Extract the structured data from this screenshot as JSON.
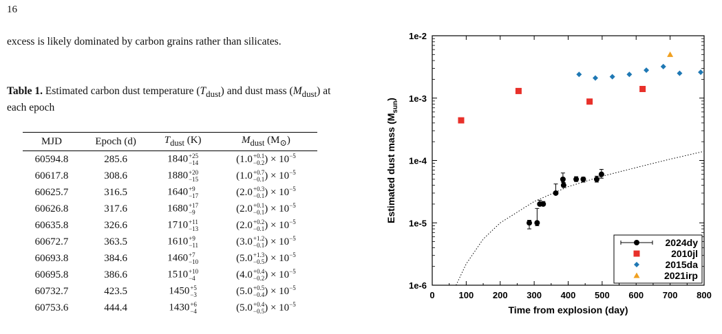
{
  "page_number": "16",
  "paragraph": "excess is likely dominated by carbon grains rather than silicates.",
  "caption": {
    "label": "Table 1.",
    "text_a": "Estimated carbon dust temperature (",
    "tdust_sym": "T",
    "tdust_sub": "dust",
    "text_b": ") and dust mass (",
    "mdust_sym": "M",
    "mdust_sub": "dust",
    "text_c": ") at each epoch"
  },
  "table": {
    "headers": {
      "mjd": "MJD",
      "epoch": "Epoch (d)",
      "tdust": "T",
      "tdust_sub": "dust",
      "tdust_unit": "(K)",
      "mdust": "M",
      "mdust_sub": "dust",
      "mdust_unit_open": "(M",
      "mdust_unit_sub": "⊙",
      "mdust_unit_close": ")"
    },
    "times": "× 10",
    "exponent": "−5",
    "rows": [
      {
        "mjd": "60594.8",
        "epoch": "285.6",
        "t": "1840",
        "t_up": "+25",
        "t_dn": "−14",
        "m": "(1.0",
        "m_up": "+0.1",
        "m_dn": "−0.2"
      },
      {
        "mjd": "60617.8",
        "epoch": "308.6",
        "t": "1880",
        "t_up": "+20",
        "t_dn": "−15",
        "m": "(1.0",
        "m_up": "+0.7",
        "m_dn": "−0.1"
      },
      {
        "mjd": "60625.7",
        "epoch": "316.5",
        "t": "1640",
        "t_up": "+9",
        "t_dn": "−17",
        "m": "(2.0",
        "m_up": "+0.3",
        "m_dn": "−0.1"
      },
      {
        "mjd": "60626.8",
        "epoch": "317.6",
        "t": "1680",
        "t_up": "+17",
        "t_dn": "−9",
        "m": "(2.0",
        "m_up": "+0.1",
        "m_dn": "−0.1"
      },
      {
        "mjd": "60635.8",
        "epoch": "326.6",
        "t": "1710",
        "t_up": "+11",
        "t_dn": "−13",
        "m": "(2.0",
        "m_up": "+0.2",
        "m_dn": "−0.1"
      },
      {
        "mjd": "60672.7",
        "epoch": "363.5",
        "t": "1610",
        "t_up": "+9",
        "t_dn": "−11",
        "m": "(3.0",
        "m_up": "+1.2",
        "m_dn": "−0.1"
      },
      {
        "mjd": "60693.8",
        "epoch": "384.6",
        "t": "1460",
        "t_up": "+7",
        "t_dn": "−10",
        "m": "(5.0",
        "m_up": "+1.3",
        "m_dn": "−0.5"
      },
      {
        "mjd": "60695.8",
        "epoch": "386.6",
        "t": "1510",
        "t_up": "+10",
        "t_dn": "−4",
        "m": "(4.0",
        "m_up": "+0.4",
        "m_dn": "−0.2"
      },
      {
        "mjd": "60732.7",
        "epoch": "423.5",
        "t": "1450",
        "t_up": "+5",
        "t_dn": "−3",
        "m": "(5.0",
        "m_up": "+0.5",
        "m_dn": "−0.4"
      },
      {
        "mjd": "60753.6",
        "epoch": "444.4",
        "t": "1430",
        "t_up": "+6",
        "t_dn": "−4",
        "m": "(5.0",
        "m_up": "+0.4",
        "m_dn": "−0.5"
      }
    ]
  },
  "chart_data": {
    "type": "scatter",
    "title": "",
    "xlabel": "Time from explosion (day)",
    "ylabel": "Estimated dust mass (M",
    "ylabel_sub": "sun",
    "ylabel_close": ")",
    "xlim": [
      0,
      800
    ],
    "ylim": [
      1e-06,
      0.01
    ],
    "yscale": "log",
    "xticks": [
      "0",
      "100",
      "200",
      "300",
      "400",
      "500",
      "600",
      "700",
      "800"
    ],
    "yticks": [
      "1e-6",
      "1e-5",
      "1e-4",
      "1e-3",
      "1e-2"
    ],
    "legend_position": "bottom-right",
    "series": [
      {
        "name": "2024dy",
        "marker": "circle",
        "color": "#000000",
        "points": [
          {
            "x": 285.6,
            "y": 1e-05,
            "ylo": 8e-06,
            "yhi": 1.1e-05
          },
          {
            "x": 308.6,
            "y": 1e-05,
            "ylo": 9e-06,
            "yhi": 1.7e-05
          },
          {
            "x": 316.5,
            "y": 2e-05,
            "ylo": 1.9e-05,
            "yhi": 2.3e-05
          },
          {
            "x": 326.6,
            "y": 2e-05,
            "ylo": 1.9e-05,
            "yhi": 2.2e-05
          },
          {
            "x": 363.5,
            "y": 3e-05,
            "ylo": 2.9e-05,
            "yhi": 4.2e-05
          },
          {
            "x": 384.6,
            "y": 5e-05,
            "ylo": 4.5e-05,
            "yhi": 6.3e-05
          },
          {
            "x": 386.6,
            "y": 4e-05,
            "ylo": 3.8e-05,
            "yhi": 4.4e-05
          },
          {
            "x": 423.5,
            "y": 5e-05,
            "ylo": 4.6e-05,
            "yhi": 5.5e-05
          },
          {
            "x": 444.4,
            "y": 5e-05,
            "ylo": 4.5e-05,
            "yhi": 5.4e-05
          },
          {
            "x": 484,
            "y": 5e-05,
            "ylo": 4.5e-05,
            "yhi": 5.6e-05
          },
          {
            "x": 498,
            "y": 6e-05,
            "ylo": 5.2e-05,
            "yhi": 7.2e-05
          }
        ]
      },
      {
        "name": "2010jl",
        "marker": "square",
        "color": "#e8302a",
        "points": [
          {
            "x": 85,
            "y": 0.00044
          },
          {
            "x": 254,
            "y": 0.0013
          },
          {
            "x": 463,
            "y": 0.00088
          },
          {
            "x": 619,
            "y": 0.0014
          }
        ]
      },
      {
        "name": "2015da",
        "marker": "diamond",
        "color": "#1f78b4",
        "points": [
          {
            "x": 432,
            "y": 0.0024
          },
          {
            "x": 480,
            "y": 0.0021
          },
          {
            "x": 530,
            "y": 0.0022
          },
          {
            "x": 580,
            "y": 0.0024
          },
          {
            "x": 630,
            "y": 0.0028
          },
          {
            "x": 680,
            "y": 0.0032
          },
          {
            "x": 728,
            "y": 0.0025
          },
          {
            "x": 790,
            "y": 0.0026
          }
        ]
      },
      {
        "name": "2021irp",
        "marker": "triangle",
        "color": "#f0a020",
        "points": [
          {
            "x": 700,
            "y": 0.005
          }
        ]
      }
    ],
    "model_curve": {
      "style": "dotted",
      "color": "#000000",
      "points": [
        [
          70,
          1e-06
        ],
        [
          100,
          2.2e-06
        ],
        [
          150,
          5.5e-06
        ],
        [
          200,
          1e-05
        ],
        [
          300,
          2.2e-05
        ],
        [
          400,
          3.8e-05
        ],
        [
          500,
          5.6e-05
        ],
        [
          600,
          7.7e-05
        ],
        [
          700,
          0.000105
        ],
        [
          800,
          0.00014
        ]
      ]
    }
  }
}
